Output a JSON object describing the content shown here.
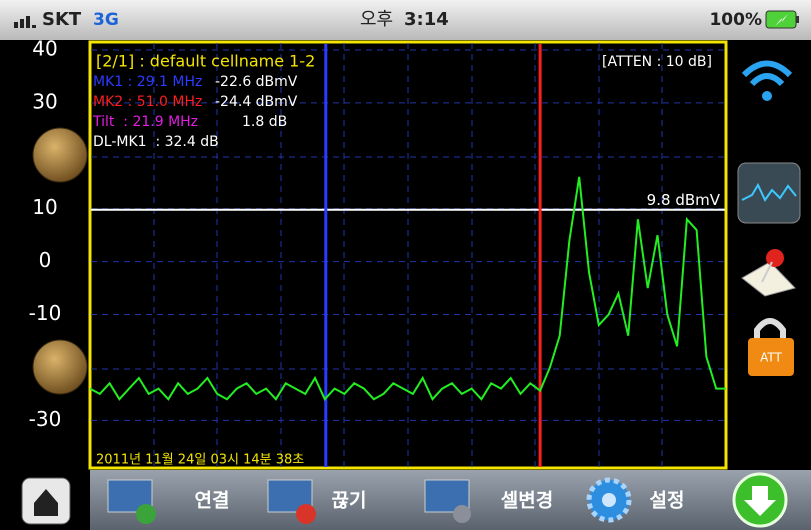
{
  "status_bar": {
    "carrier": "SKT",
    "network": "3G",
    "period": "오후",
    "time": "3:14",
    "battery": "100%"
  },
  "screen_title": "[2/1] : default cellname 1-2",
  "atten": "[ATTEN : 10 dB]",
  "markers": {
    "separator": ":",
    "items": [
      {
        "name": "MK1",
        "freq": {
          "value": 29.1,
          "label": "29.1"
        },
        "unit": "MHz",
        "level": "-22.6 dBmV",
        "color": "#2a3cff"
      },
      {
        "name": "MK2",
        "freq": {
          "value": 51.0,
          "label": "51.0"
        },
        "unit": "MHz",
        "level": "-24.4 dBmV",
        "color": "#ff1e1e"
      }
    ]
  },
  "tilt": {
    "label": "Tilt  : 21.9 MHz",
    "value": "1.8 dB"
  },
  "dl_mk1": "DL-MK1  : 32.4 dB",
  "timestamp": "2011년 11월 24일 03시 14분 38초",
  "chart_data": {
    "type": "line",
    "x": [
      5,
      6,
      7,
      8,
      9,
      10,
      11,
      12,
      13,
      14,
      15,
      16,
      17,
      18,
      19,
      20,
      21,
      22,
      23,
      24,
      25,
      26,
      27,
      28,
      29,
      30,
      31,
      32,
      33,
      34,
      35,
      36,
      37,
      38,
      39,
      40,
      41,
      42,
      43,
      44,
      45,
      46,
      47,
      48,
      49,
      50,
      51,
      52,
      53,
      54,
      55,
      56,
      57,
      58,
      59,
      60,
      61,
      62,
      63,
      64,
      65,
      66,
      67,
      68,
      69,
      70
    ],
    "series": [
      {
        "color": "#22ee22",
        "values": [
          -24,
          -25,
          -23,
          -26,
          -24,
          -22,
          -25,
          -24,
          -26,
          -23,
          -25,
          -24,
          -22,
          -25,
          -26,
          -24,
          -23,
          -25,
          -24,
          -26,
          -23,
          -24,
          -25,
          -22,
          -26,
          -24,
          -25,
          -23,
          -24,
          -26,
          -25,
          -23,
          -24,
          -25,
          -22,
          -26,
          -24,
          -23,
          -25,
          -24,
          -26,
          -23,
          -24,
          -22,
          -25,
          -23,
          -24.4,
          -20,
          -14,
          4,
          16,
          -2,
          -12,
          -10,
          -6,
          -14,
          8,
          -5,
          5,
          -10,
          -16,
          8,
          6,
          -18,
          -24,
          -24
        ]
      }
    ],
    "xlim": [
      5,
      70
    ],
    "ylim": [
      -39,
      41.5
    ],
    "yticks": [
      40,
      30,
      10,
      0,
      -10,
      -30
    ],
    "grid": true,
    "ref_line": {
      "value": 9.8,
      "unit": "dBmV",
      "color": "#ffffff"
    }
  },
  "side_buttons": {
    "lock": "ATT"
  },
  "toolbar": [
    "연결",
    "끊기",
    "셀변경",
    "설정"
  ]
}
